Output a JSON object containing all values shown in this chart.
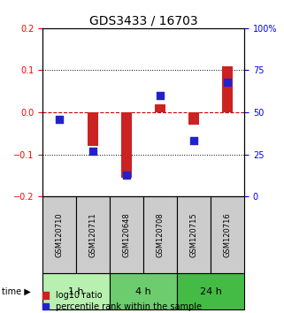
{
  "title": "GDS3433 / 16703",
  "samples": [
    "GSM120710",
    "GSM120711",
    "GSM120648",
    "GSM120708",
    "GSM120715",
    "GSM120716"
  ],
  "log10_ratio": [
    0.0,
    -0.08,
    -0.155,
    0.02,
    -0.03,
    0.11
  ],
  "percentile_rank": [
    46,
    27,
    13,
    60,
    33,
    68
  ],
  "time_groups": [
    {
      "label": "1 h",
      "start": 0,
      "end": 2,
      "color": "#b8f0b0"
    },
    {
      "label": "4 h",
      "start": 2,
      "end": 4,
      "color": "#6dcc6d"
    },
    {
      "label": "24 h",
      "start": 4,
      "end": 6,
      "color": "#44bb44"
    }
  ],
  "ylim_left": [
    -0.2,
    0.2
  ],
  "ylim_right": [
    0,
    100
  ],
  "left_yticks": [
    -0.2,
    -0.1,
    0.0,
    0.1,
    0.2
  ],
  "right_yticks": [
    0,
    25,
    50,
    75,
    100
  ],
  "right_yticklabels": [
    "0",
    "25",
    "50",
    "75",
    "100%"
  ],
  "bar_color": "#cc2222",
  "dot_color": "#2222cc",
  "bar_width": 0.3,
  "dot_size": 30,
  "sample_box_color": "#cccccc",
  "zero_line_color": "#cc0000",
  "grid_color": "#000000",
  "title_fontsize": 10,
  "tick_fontsize": 7,
  "legend_fontsize": 7
}
